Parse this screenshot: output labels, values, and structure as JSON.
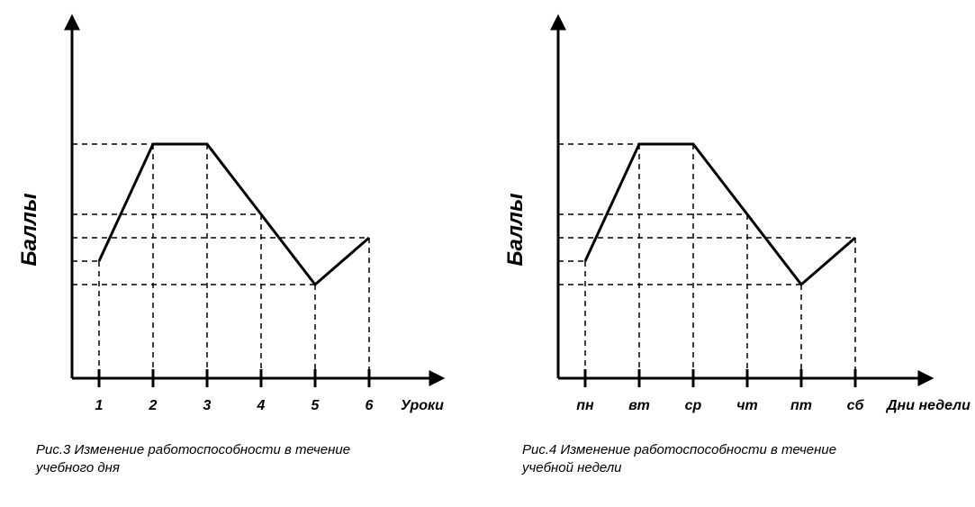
{
  "chart_left": {
    "type": "line",
    "y_axis_label": "Баллы",
    "x_axis_label": "Уроки",
    "x_categories": [
      "1",
      "2",
      "3",
      "4",
      "5",
      "6"
    ],
    "values": [
      50,
      100,
      100,
      70,
      40,
      60
    ],
    "ylim": [
      0,
      150
    ],
    "line_color": "#000000",
    "line_width": 3,
    "dash_color": "#000000",
    "dash_pattern": "6,5",
    "axis_color": "#000000",
    "axis_width": 3,
    "background_color": "#ffffff",
    "label_fontsize": 24,
    "tick_fontsize": 16,
    "font_family": "Arial",
    "caption": "Рис.3 Изменение работоспособности в течение учебного дня",
    "caption_fontsize": 15
  },
  "chart_right": {
    "type": "line",
    "y_axis_label": "Баллы",
    "x_axis_label": "Дни недели",
    "x_categories": [
      "пн",
      "вт",
      "ср",
      "чт",
      "пт",
      "сб"
    ],
    "values": [
      50,
      100,
      100,
      70,
      40,
      60
    ],
    "ylim": [
      0,
      150
    ],
    "line_color": "#000000",
    "line_width": 3,
    "dash_color": "#000000",
    "dash_pattern": "6,5",
    "axis_color": "#000000",
    "axis_width": 3,
    "background_color": "#ffffff",
    "label_fontsize": 24,
    "tick_fontsize": 16,
    "font_family": "Arial",
    "caption": "Рис.4 Изменение работоспособности в течение учебной недели",
    "caption_fontsize": 15
  }
}
